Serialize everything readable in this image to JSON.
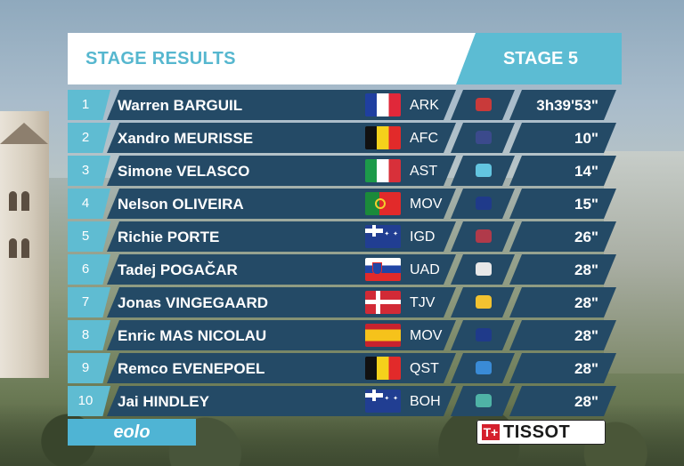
{
  "header": {
    "title": "STAGE RESULTS",
    "stage": "STAGE 5"
  },
  "colors": {
    "accent_cyan": "#5cbcd3",
    "row_navy": "#244a66",
    "header_white": "#ffffff"
  },
  "results": [
    {
      "pos": "1",
      "rider": "Warren BARGUIL",
      "flag": "france-flag",
      "team": "ARK",
      "jersey": "#c93a3a",
      "time": "3h39'53\""
    },
    {
      "pos": "2",
      "rider": "Xandro MEURISSE",
      "flag": "belgium-flag",
      "team": "AFC",
      "jersey": "#3b4a8c",
      "time": "10\""
    },
    {
      "pos": "3",
      "rider": "Simone VELASCO",
      "flag": "italy-flag",
      "team": "AST",
      "jersey": "#63c5e0",
      "time": "14\""
    },
    {
      "pos": "4",
      "rider": "Nelson OLIVEIRA",
      "flag": "portugal-flag",
      "team": "MOV",
      "jersey": "#1f3a8a",
      "time": "15\""
    },
    {
      "pos": "5",
      "rider": "Richie PORTE",
      "flag": "australia-flag",
      "team": "IGD",
      "jersey": "#b03a4a",
      "time": "26\""
    },
    {
      "pos": "6",
      "rider": "Tadej POGAČAR",
      "flag": "slovenia-flag",
      "team": "UAD",
      "jersey": "#e8e8e8",
      "time": "28\""
    },
    {
      "pos": "7",
      "rider": "Jonas VINGEGAARD",
      "flag": "denmark-flag",
      "team": "TJV",
      "jersey": "#f2c230",
      "time": "28\""
    },
    {
      "pos": "8",
      "rider": "Enric MAS NICOLAU",
      "flag": "spain-flag",
      "team": "MOV",
      "jersey": "#1f3a8a",
      "time": "28\""
    },
    {
      "pos": "9",
      "rider": "Remco EVENEPOEL",
      "flag": "belgium-flag",
      "team": "QST",
      "jersey": "#3a8bd6",
      "time": "28\""
    },
    {
      "pos": "10",
      "rider": "Jai HINDLEY",
      "flag": "australia-flag",
      "team": "BOH",
      "jersey": "#4fb3a6",
      "time": "28\""
    }
  ],
  "sponsors": {
    "left": "eolo",
    "right": "TISSOT",
    "right_mark": "T+"
  }
}
